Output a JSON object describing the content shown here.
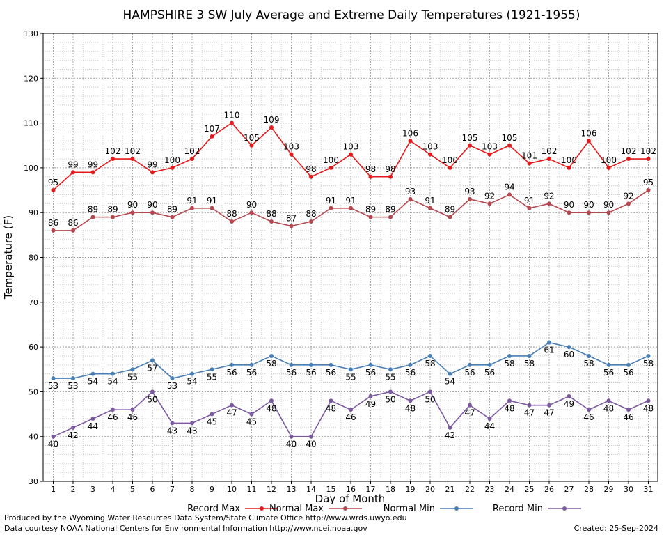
{
  "colors": {
    "record_max": "#e31a1c",
    "normal_max": "#b5474f",
    "normal_min": "#4a7fb5",
    "record_min": "#7b5aa0"
  },
  "chart_data": {
    "type": "line",
    "title": "HAMPSHIRE 3 SW July Average and Extreme Daily Temperatures (1921-1955)",
    "xlabel": "Day of Month",
    "ylabel": "Temperature (F)",
    "x": [
      1,
      2,
      3,
      4,
      5,
      6,
      7,
      8,
      9,
      10,
      11,
      12,
      13,
      14,
      15,
      16,
      17,
      18,
      19,
      20,
      21,
      22,
      23,
      24,
      25,
      26,
      27,
      28,
      29,
      30,
      31
    ],
    "ylim": [
      30,
      130
    ],
    "yticks": [
      30,
      40,
      50,
      60,
      70,
      80,
      90,
      100,
      110,
      120,
      130
    ],
    "grid": true,
    "legend_position": "bottom",
    "series": [
      {
        "name": "Record Max",
        "color": "#e31a1c",
        "values": [
          95,
          99,
          99,
          102,
          102,
          99,
          100,
          102,
          107,
          110,
          105,
          109,
          103,
          98,
          100,
          103,
          98,
          98,
          106,
          103,
          100,
          105,
          103,
          105,
          101,
          102,
          100,
          106,
          100,
          102,
          102
        ]
      },
      {
        "name": "Normal Max",
        "color": "#b5474f",
        "values": [
          86,
          86,
          89,
          89,
          90,
          90,
          89,
          91,
          91,
          88,
          90,
          88,
          87,
          88,
          91,
          91,
          89,
          89,
          93,
          91,
          89,
          93,
          92,
          94,
          91,
          92,
          90,
          90,
          90,
          92,
          95
        ]
      },
      {
        "name": "Normal Min",
        "color": "#4a7fb5",
        "values": [
          53,
          53,
          54,
          54,
          55,
          57,
          53,
          54,
          55,
          56,
          56,
          58,
          56,
          56,
          56,
          55,
          56,
          55,
          56,
          58,
          54,
          56,
          56,
          58,
          58,
          61,
          60,
          58,
          56,
          56,
          58
        ]
      },
      {
        "name": "Record Min",
        "color": "#7b5aa0",
        "values": [
          40,
          42,
          44,
          46,
          46,
          50,
          43,
          43,
          45,
          47,
          45,
          48,
          40,
          40,
          48,
          46,
          49,
          50,
          48,
          50,
          42,
          47,
          44,
          48,
          47,
          47,
          49,
          46,
          48,
          46,
          48
        ]
      }
    ]
  },
  "footer": {
    "credit_line_1": "Produced by the Wyoming Water Resources Data System/State Climate Office http://www.wrds.uwyo.edu",
    "credit_line_2": "Data courtesy NOAA National Centers for Environmental Information http://www.ncei.noaa.gov",
    "created": "Created:  25-Sep-2024"
  }
}
